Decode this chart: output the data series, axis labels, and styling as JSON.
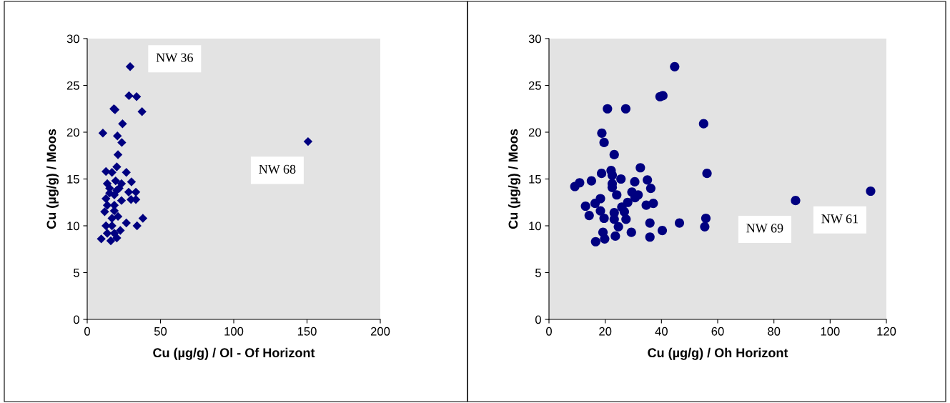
{
  "chart_data": [
    {
      "type": "scatter",
      "marker": "diamond",
      "xlabel": "Cu (µg/g) / Ol - Of Horizont",
      "ylabel": "Cu (µg/g) / Moos",
      "xlim": [
        0,
        200
      ],
      "xticks": [
        0,
        50,
        100,
        150,
        200
      ],
      "ylim": [
        0,
        30
      ],
      "yticks": [
        0,
        5,
        10,
        15,
        20,
        25,
        30
      ],
      "grid": false,
      "series": [
        {
          "color": "#000080",
          "x": [
            29.3,
            28.5,
            33.7,
            18.2,
            19.0,
            37.4,
            24.1,
            10.7,
            20.6,
            23.6,
            21.0,
            150.7,
            20.2,
            12.8,
            26.7,
            16.9,
            13.7,
            19.4,
            30.2,
            21.8,
            28.3,
            33.2,
            12.8,
            18.5,
            23.4,
            29.9,
            33.2,
            13.7,
            18.5,
            11.9,
            18.5,
            16.9,
            21.0,
            38.0,
            34.0,
            26.7,
            12.8,
            16.9,
            22.6,
            13.7,
            18.5,
            9.6,
            16.1,
            20.2,
            15.3,
            20.2,
            15.3,
            23.4
          ],
          "values": [
            27.0,
            23.9,
            23.8,
            22.5,
            22.4,
            22.2,
            20.9,
            19.9,
            19.6,
            18.9,
            17.6,
            19.0,
            16.3,
            15.8,
            15.7,
            15.7,
            14.5,
            14.8,
            14.7,
            14.0,
            13.6,
            13.6,
            12.9,
            13.3,
            12.7,
            12.8,
            12.8,
            12.2,
            12.2,
            11.5,
            11.6,
            10.8,
            11.0,
            10.8,
            10.0,
            10.3,
            10.0,
            10.0,
            9.5,
            9.2,
            9.2,
            8.6,
            8.4,
            8.7,
            14.0,
            13.8,
            13.5,
            14.5
          ]
        }
      ],
      "annotations": [
        {
          "text": "NW 36",
          "x": 29.3,
          "y": 27.0
        },
        {
          "text": "NW 68",
          "x": 150.7,
          "y": 19.0
        }
      ]
    },
    {
      "type": "scatter",
      "marker": "circle",
      "xlabel": "Cu (µg/g) / Oh Horizont",
      "ylabel": "Cu (µg/g) / Moos",
      "xlim": [
        0,
        120
      ],
      "xticks": [
        0,
        20,
        40,
        60,
        80,
        100,
        120
      ],
      "ylim": [
        0,
        30
      ],
      "yticks": [
        0,
        5,
        10,
        15,
        20,
        25,
        30
      ],
      "grid": false,
      "series": [
        {
          "color": "#000080",
          "x": [
            44.7,
            39.5,
            40.5,
            20.8,
            27.3,
            55.0,
            18.8,
            19.6,
            23.2,
            32.5,
            56.2,
            18.7,
            22.1,
            22.5,
            25.6,
            15.1,
            10.9,
            9.2,
            22.5,
            30.5,
            35.0,
            36.2,
            22.5,
            24.1,
            29.5,
            31.7,
            30.6,
            18.3,
            16.4,
            13.0,
            28.0,
            25.9,
            34.6,
            37.1,
            18.3,
            14.3,
            19.6,
            23.2,
            23.2,
            26.8,
            27.4,
            35.9,
            46.4,
            55.8,
            55.4,
            24.7,
            19.2,
            29.3,
            40.3,
            23.6,
            19.8,
            16.6,
            35.9,
            87.7,
            114.4
          ],
          "values": [
            27.0,
            23.8,
            23.9,
            22.5,
            22.5,
            20.9,
            19.9,
            18.9,
            17.6,
            16.2,
            15.6,
            15.6,
            15.9,
            15.4,
            15.0,
            14.8,
            14.6,
            14.2,
            14.5,
            14.7,
            14.9,
            14.0,
            14.1,
            13.3,
            13.6,
            13.3,
            13.0,
            12.9,
            12.4,
            12.1,
            12.5,
            12.0,
            12.2,
            12.4,
            11.6,
            11.1,
            10.8,
            11.4,
            10.7,
            11.5,
            10.7,
            10.3,
            10.3,
            10.8,
            9.9,
            9.9,
            9.3,
            9.3,
            9.5,
            8.9,
            8.6,
            8.3,
            8.8,
            12.7,
            13.7
          ]
        }
      ],
      "annotations": [
        {
          "text": "NW 69",
          "x": 87.7,
          "y": 12.7
        },
        {
          "text": "NW 61",
          "x": 114.4,
          "y": 13.7
        }
      ]
    }
  ]
}
